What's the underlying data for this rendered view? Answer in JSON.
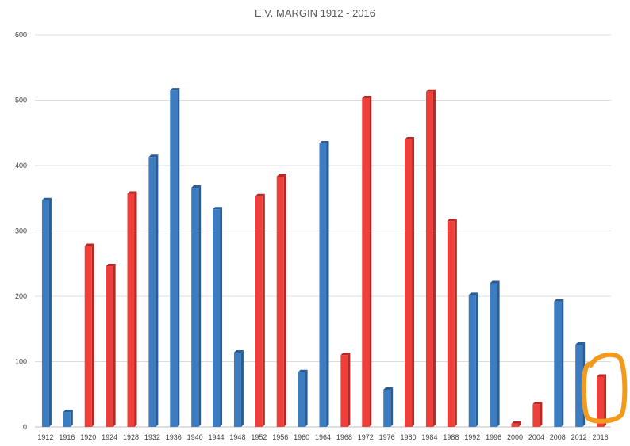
{
  "chart_data": {
    "type": "bar",
    "title": "E.V. MARGIN 1912 - 2016",
    "xlabel": "",
    "ylabel": "",
    "ylim": [
      0,
      600
    ],
    "y_ticks": [
      "0",
      "100",
      "200",
      "300",
      "400",
      "500",
      "600"
    ],
    "grid": true,
    "legend": "none",
    "categories": [
      "1912",
      "1916",
      "1920",
      "1924",
      "1928",
      "1932",
      "1936",
      "1940",
      "1944",
      "1948",
      "1952",
      "1956",
      "1960",
      "1964",
      "1968",
      "1972",
      "1976",
      "1980",
      "1984",
      "1988",
      "1992",
      "1996",
      "2000",
      "2004",
      "2008",
      "2012",
      "2016"
    ],
    "values": [
      347,
      23,
      277,
      246,
      357,
      413,
      515,
      366,
      333,
      114,
      353,
      383,
      84,
      434,
      110,
      503,
      57,
      440,
      513,
      315,
      202,
      220,
      5,
      35,
      192,
      126,
      77
    ],
    "bar_party": [
      "blue",
      "blue",
      "red",
      "red",
      "red",
      "blue",
      "blue",
      "blue",
      "blue",
      "blue",
      "red",
      "red",
      "blue",
      "blue",
      "red",
      "red",
      "blue",
      "red",
      "red",
      "red",
      "blue",
      "blue",
      "red",
      "red",
      "blue",
      "blue",
      "red"
    ],
    "colors": {
      "blue": "#3c7dc1",
      "blue_dark": "#2a5d95",
      "red": "#ef3f3a",
      "red_dark": "#b22a26",
      "highlight": "#f39a1c"
    },
    "highlight_category": "2016"
  }
}
